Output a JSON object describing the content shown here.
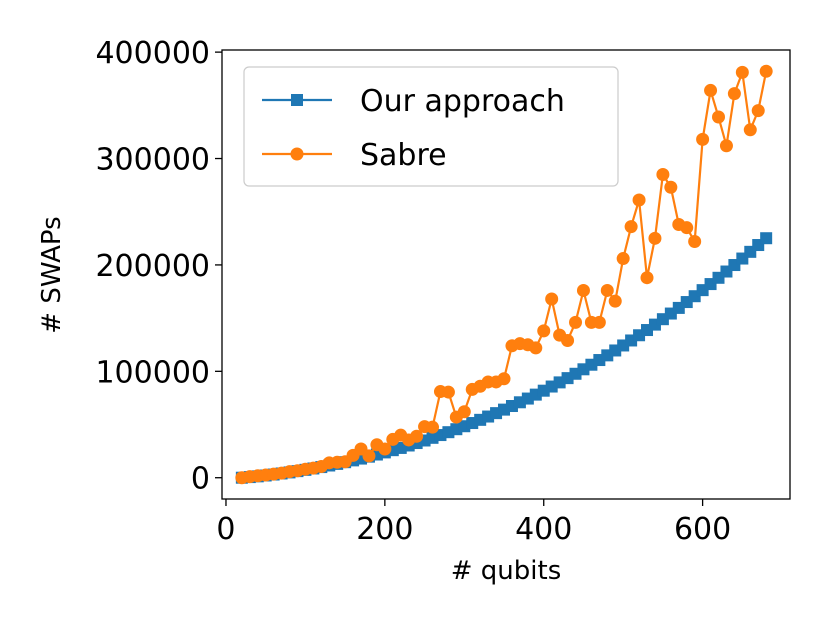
{
  "chart_data": {
    "type": "line",
    "xlabel": "# qubits",
    "ylabel": "# SWAPs",
    "xlim": [
      -5,
      710
    ],
    "ylim": [
      -20000,
      402000
    ],
    "xticks": [
      0,
      200,
      400,
      600
    ],
    "xtick_labels": [
      "0",
      "200",
      "400",
      "600"
    ],
    "yticks": [
      0,
      100000,
      200000,
      300000,
      400000
    ],
    "ytick_labels": [
      "0",
      "100000",
      "200000",
      "300000",
      "400000"
    ],
    "grid": false,
    "legend_position": "top-left",
    "x": [
      20,
      30,
      40,
      50,
      60,
      70,
      80,
      90,
      100,
      110,
      120,
      130,
      140,
      150,
      160,
      170,
      180,
      190,
      200,
      210,
      220,
      230,
      240,
      250,
      260,
      270,
      280,
      290,
      300,
      310,
      320,
      330,
      340,
      350,
      360,
      370,
      380,
      390,
      400,
      410,
      420,
      430,
      440,
      450,
      460,
      470,
      480,
      490,
      500,
      510,
      520,
      530,
      540,
      550,
      560,
      570,
      580,
      590,
      600,
      610,
      620,
      630,
      640,
      650,
      660,
      670,
      680
    ],
    "series": [
      {
        "name": "Our approach",
        "color": "#1f77b4",
        "marker": "square",
        "values": [
          0,
          600,
          1300,
          2100,
          3000,
          4000,
          5000,
          6200,
          7400,
          8700,
          10000,
          11500,
          13000,
          14600,
          16300,
          18000,
          19800,
          21800,
          23800,
          25900,
          28000,
          30300,
          32600,
          35000,
          37500,
          40100,
          42800,
          45600,
          48400,
          51400,
          54400,
          57500,
          60700,
          64000,
          67400,
          70900,
          74400,
          78100,
          81800,
          85700,
          89600,
          93600,
          97700,
          101900,
          106200,
          110600,
          115000,
          119600,
          124300,
          129000,
          133900,
          138800,
          143900,
          149000,
          154300,
          159600,
          165100,
          170600,
          176300,
          182000,
          187900,
          193800,
          199900,
          206000,
          212300,
          218700,
          225100
        ]
      },
      {
        "name": "Sabre",
        "color": "#ff7f0e",
        "marker": "circle",
        "values": [
          0,
          1000,
          1800,
          2500,
          3400,
          4300,
          5700,
          6500,
          8000,
          9000,
          10500,
          14000,
          14500,
          15000,
          21000,
          27000,
          20500,
          31000,
          27000,
          36000,
          40000,
          35500,
          39000,
          48000,
          47500,
          81000,
          80500,
          57000,
          62000,
          83000,
          86000,
          90000,
          90000,
          93000,
          124000,
          126000,
          125000,
          122000,
          138000,
          168000,
          134000,
          129000,
          146000,
          176000,
          146000,
          146000,
          176000,
          166000,
          206000,
          236000,
          261000,
          188000,
          225000,
          285000,
          273000,
          238000,
          235000,
          222000,
          318000,
          364000,
          339000,
          312000,
          361000,
          381000,
          327000,
          345000,
          382000
        ]
      }
    ]
  }
}
